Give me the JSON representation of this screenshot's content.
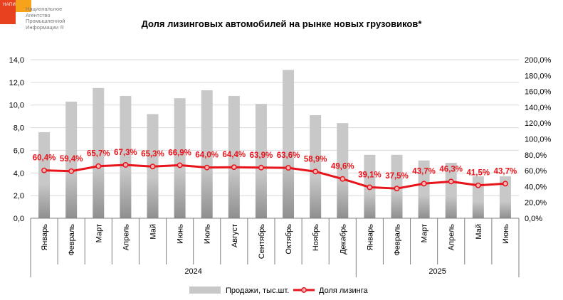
{
  "logo": {
    "abbr": "НАПИ",
    "lines": [
      "Национальное",
      "Агентство",
      "Промышленной",
      "Информации ®"
    ],
    "colors": {
      "primary": "#e8411f",
      "secondary": "#f7a21b"
    }
  },
  "chart_data": {
    "type": "bar",
    "title": "Доля лизинговых автомобилей на рынке новых грузовиков*",
    "categories": [
      "Январь",
      "Февраль",
      "Март",
      "Апрель",
      "Май",
      "Июнь",
      "Июль",
      "Август",
      "Сентябрь",
      "Октябрь",
      "Ноябрь",
      "Декабрь",
      "Январь",
      "Февраль",
      "Март",
      "Апрель",
      "Май",
      "Июнь"
    ],
    "groups": [
      {
        "label": "2024",
        "count": 12
      },
      {
        "label": "2025",
        "count": 6
      }
    ],
    "series": [
      {
        "name": "Продажи, тыс.шт.",
        "type": "bar",
        "axis": "left",
        "color": "#c8c8c8",
        "values": [
          7.6,
          10.3,
          11.5,
          10.8,
          9.2,
          10.6,
          11.3,
          10.8,
          10.1,
          13.1,
          9.1,
          8.4,
          5.6,
          5.6,
          5.1,
          4.9,
          3.7,
          3.7
        ]
      },
      {
        "name": "Доля лизинга",
        "type": "line",
        "axis": "right",
        "color": "#e8141b",
        "values": [
          60.4,
          59.4,
          65.7,
          67.3,
          65.3,
          66.9,
          64.0,
          64.4,
          63.9,
          63.6,
          58.9,
          49.6,
          39.1,
          37.5,
          43.7,
          46.3,
          41.5,
          43.7
        ],
        "labels": [
          "60,4%",
          "59,4%",
          "65,7%",
          "67,3%",
          "65,3%",
          "66,9%",
          "64,0%",
          "64,4%",
          "63,9%",
          "63,6%",
          "58,9%",
          "49,6%",
          "39,1%",
          "37,5%",
          "43,7%",
          "46,3%",
          "41,5%",
          "43,7%"
        ]
      }
    ],
    "y_left": {
      "range": [
        0,
        14
      ],
      "ticks": [
        0,
        2,
        4,
        6,
        8,
        10,
        12,
        14
      ],
      "tick_labels": [
        "0,0",
        "2,0",
        "4,0",
        "6,0",
        "8,0",
        "10,0",
        "12,0",
        "14,0"
      ]
    },
    "y_right": {
      "range": [
        0,
        200
      ],
      "ticks": [
        0,
        20,
        40,
        60,
        80,
        100,
        120,
        140,
        160,
        180,
        200
      ],
      "tick_labels": [
        "0,0%",
        "20,0%",
        "40,0%",
        "60,0%",
        "80,0%",
        "100,0%",
        "120,0%",
        "140,0%",
        "160,0%",
        "180,0%",
        "200,0%"
      ]
    },
    "grid": true,
    "legend_position": "bottom-center"
  }
}
